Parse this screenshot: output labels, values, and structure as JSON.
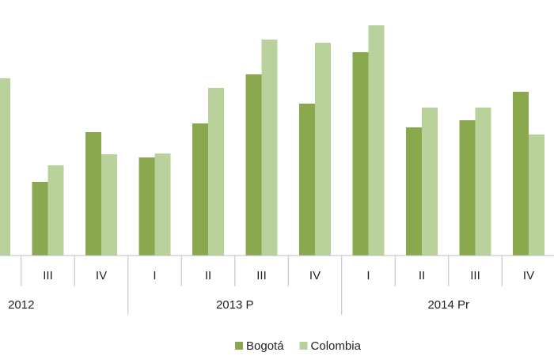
{
  "chart_data": {
    "type": "bar",
    "categories": [
      null,
      "III",
      "IV",
      "I",
      "II",
      "III",
      "IV",
      "I",
      "II",
      "III",
      "IV"
    ],
    "groups": [
      "2012",
      "2013 P",
      "2014 Pr"
    ],
    "series": [
      {
        "name": "Bogotá",
        "color": "#8aa94f",
        "values": [
          null,
          93,
          156,
          124,
          167,
          229,
          192,
          257,
          162,
          171,
          207
        ]
      },
      {
        "name": "Colombia",
        "color": "#b9d29b",
        "values": [
          224,
          114,
          128,
          129,
          212,
          273,
          269,
          291,
          187,
          187,
          153
        ]
      }
    ],
    "ylim": [
      0,
      300
    ]
  }
}
